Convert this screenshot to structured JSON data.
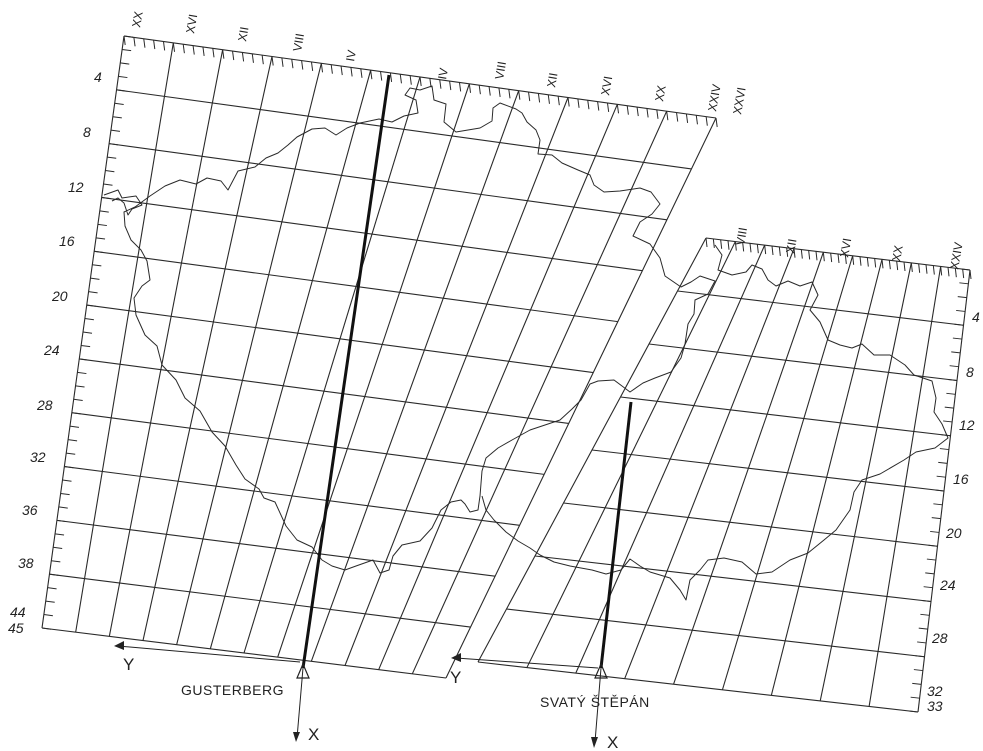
{
  "west_sheet": {
    "top_labels": [
      "XX",
      "XVI",
      "XII",
      "VIII",
      "IV"
    ],
    "top_labels_east": [
      "IV",
      "VIII",
      "XII",
      "XVI",
      "XX",
      "XXIV",
      "XXVI"
    ],
    "left_labels": [
      "4",
      "8",
      "12",
      "16",
      "20",
      "24",
      "28",
      "32",
      "36",
      "38",
      "44",
      "45"
    ],
    "station": "GUSTERBERG",
    "axis_y": "Y",
    "axis_x": "X"
  },
  "east_sheet": {
    "top_labels": [
      "VIII",
      "XII",
      "XVI",
      "XX",
      "XXIV"
    ],
    "right_labels": [
      "4",
      "8",
      "12",
      "16",
      "20",
      "24",
      "28",
      "32",
      "33"
    ],
    "station": "SVATÝ ŠTĚPÁN",
    "axis_y": "Y",
    "axis_x": "X"
  }
}
